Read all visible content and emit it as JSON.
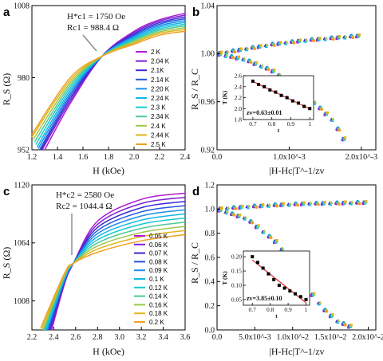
{
  "panels": {
    "a": {
      "label": "a",
      "xlabel": "H (kOe)",
      "ylabel": "R_S (Ω)",
      "annot_h": "H*c1 = 1750 Oe",
      "annot_r": "Rc1 = 988.4 Ω",
      "legend": [
        "2 K",
        "2.04 K",
        "2.1K",
        "2.14 K",
        "2.20 K",
        "2.24 K",
        "2.3 K",
        "2.34 K",
        "2.4 K",
        "2.44 K",
        "2.5 K"
      ],
      "xticks": [
        "1.2",
        "1.4",
        "1.6",
        "1.8",
        "2.0",
        "2.2",
        "2.4"
      ],
      "yticks": [
        "952",
        "980",
        "1008"
      ]
    },
    "b": {
      "label": "b",
      "xlabel": "|H-Hc|T^-1/zv",
      "ylabel": "R_S / R_C",
      "xticks": [
        "0.0",
        "1.0x10^-3",
        "2.0x10^-3"
      ],
      "yticks": [
        "0.92",
        "0.96",
        "1.00",
        "1.04"
      ],
      "inset": {
        "ylabel": "T (K)",
        "xlabel": "t",
        "xticks": [
          "0.7",
          "0.8",
          "0.9",
          "1"
        ],
        "yticks": [
          "1.8",
          "2.0",
          "2.2",
          "2.4",
          "2.6"
        ],
        "fit_text": "zv=0.63±0.01"
      }
    },
    "c": {
      "label": "c",
      "xlabel": "H (kOe)",
      "ylabel": "R_S (Ω)",
      "annot_h": "H*c2 = 2580 Oe",
      "annot_r": "Rc2 = 1044.4 Ω",
      "legend": [
        "0.05 K",
        "0.06 K",
        "0.07 K",
        "0.08 K",
        "0.09 K",
        "0.1 K",
        "0.12 K",
        "0.14 K",
        "0.16 K",
        "0.18 K",
        "0.2 K"
      ],
      "xticks": [
        "2.2",
        "2.4",
        "2.6",
        "2.8",
        "3.0",
        "3.2",
        "3.4",
        "3.6"
      ],
      "yticks": [
        "1008",
        "1064",
        "1120"
      ]
    },
    "d": {
      "label": "d",
      "xlabel": "|H-Hc|T^-1/zv",
      "ylabel": "R_S / R_C",
      "xticks": [
        "0.0",
        "5.0x10^-3",
        "1.0x10^-2",
        "1.5x10^-2",
        "2.0x10^-2"
      ],
      "yticks": [
        "0.0",
        "0.2",
        "0.4",
        "0.6",
        "0.8",
        "1.0",
        "1.2"
      ],
      "inset": {
        "ylabel": "T (K)",
        "xlabel": "t",
        "xticks": [
          "0.7",
          "0.8",
          "0.9",
          "1"
        ],
        "yticks": [
          "0.05",
          "0.10",
          "0.15",
          "0.20"
        ],
        "fit_text": "zv=3.85±0.10"
      }
    }
  },
  "colors": [
    "#b01ad6",
    "#7a22d6",
    "#3c2ad0",
    "#2456e0",
    "#1e8ee8",
    "#12b6e6",
    "#16cad0",
    "#4ec89a",
    "#9cc84a",
    "#e0b61e",
    "#f0a020"
  ],
  "chart_data": [
    {
      "type": "line",
      "title": "",
      "xlabel": "H (kOe)",
      "ylabel": "R_S (Ω)",
      "xlim": [
        1.2,
        2.4
      ],
      "ylim": [
        952,
        1008
      ],
      "crossing": {
        "x": 1.75,
        "y": 988.4
      },
      "series": [
        {
          "name": "2 K",
          "x": [
            1.3,
            1.5,
            1.75,
            2.0,
            2.2,
            2.4
          ],
          "y": [
            952,
            970,
            988.4,
            998,
            1002.5,
            1005
          ]
        },
        {
          "name": "2.04 K",
          "x": [
            1.28,
            1.5,
            1.75,
            2.0,
            2.2,
            2.4
          ],
          "y": [
            952,
            971,
            988.4,
            997.5,
            1002,
            1004.3
          ]
        },
        {
          "name": "2.1K",
          "x": [
            1.27,
            1.5,
            1.75,
            2.0,
            2.2,
            2.4
          ],
          "y": [
            952,
            972,
            988.4,
            997,
            1001.4,
            1003.6
          ]
        },
        {
          "name": "2.14 K",
          "x": [
            1.26,
            1.5,
            1.75,
            2.0,
            2.2,
            2.4
          ],
          "y": [
            952,
            973,
            988.4,
            996.5,
            1000.8,
            1002.9
          ]
        },
        {
          "name": "2.20 K",
          "x": [
            1.25,
            1.5,
            1.75,
            2.0,
            2.2,
            2.4
          ],
          "y": [
            952.5,
            974,
            988.4,
            996,
            1000.2,
            1002.2
          ]
        },
        {
          "name": "2.24 K",
          "x": [
            1.24,
            1.5,
            1.75,
            2.0,
            2.2,
            2.4
          ],
          "y": [
            953,
            975,
            988.4,
            995.5,
            999.6,
            1001.5
          ]
        },
        {
          "name": "2.3 K",
          "x": [
            1.23,
            1.5,
            1.75,
            2.0,
            2.2,
            2.4
          ],
          "y": [
            954,
            976,
            988.4,
            995,
            999,
            1000.8
          ]
        },
        {
          "name": "2.34 K",
          "x": [
            1.22,
            1.5,
            1.75,
            2.0,
            2.2,
            2.4
          ],
          "y": [
            955,
            977,
            988.4,
            994.5,
            998.4,
            1000.1
          ]
        },
        {
          "name": "2.4 K",
          "x": [
            1.21,
            1.5,
            1.75,
            2.0,
            2.2,
            2.4
          ],
          "y": [
            956,
            978,
            988.4,
            994,
            997.8,
            999.4
          ]
        },
        {
          "name": "2.44 K",
          "x": [
            1.2,
            1.5,
            1.75,
            2.0,
            2.2,
            2.4
          ],
          "y": [
            957,
            979,
            988.4,
            993.5,
            997.2,
            998.7
          ]
        },
        {
          "name": "2.5 K",
          "x": [
            1.2,
            1.5,
            1.75,
            2.0,
            2.2,
            2.4
          ],
          "y": [
            958,
            980,
            988.4,
            993,
            996.5,
            998
          ]
        }
      ]
    },
    {
      "type": "scatter",
      "xlabel": "|H-Hc|T^-1/zv",
      "ylabel": "R_S / R_C",
      "xlim": [
        0,
        0.0022
      ],
      "ylim": [
        0.92,
        1.04
      ],
      "upper_branch": {
        "x": [
          0,
          0.0004,
          0.0008,
          0.0012,
          0.0016,
          0.002
        ],
        "y": [
          1.0,
          1.004,
          1.008,
          1.011,
          1.013,
          1.015
        ]
      },
      "lower_branch": {
        "x": [
          0,
          0.0004,
          0.0008,
          0.0012,
          0.0016,
          0.0018
        ],
        "y": [
          1.0,
          0.995,
          0.985,
          0.968,
          0.945,
          0.925
        ]
      },
      "inset": {
        "xlabel": "t",
        "ylabel": "T (K)",
        "xlim": [
          0.65,
          1.02
        ],
        "ylim": [
          1.8,
          2.6
        ],
        "x": [
          0.7,
          0.73,
          0.76,
          0.79,
          0.82,
          0.85,
          0.88,
          0.91,
          0.94,
          0.97,
          1.0
        ],
        "y": [
          2.5,
          2.44,
          2.4,
          2.34,
          2.3,
          2.24,
          2.2,
          2.14,
          2.1,
          2.04,
          2.0
        ],
        "fit": "zv=0.63±0.01"
      }
    },
    {
      "type": "line",
      "xlabel": "H (kOe)",
      "ylabel": "R_S (Ω)",
      "xlim": [
        2.2,
        3.6
      ],
      "ylim": [
        980,
        1120
      ],
      "crossing": {
        "x": 2.58,
        "y": 1044.4
      },
      "series": [
        {
          "name": "0.05 K",
          "x": [
            2.38,
            2.5,
            2.58,
            2.8,
            3.2,
            3.6
          ],
          "y": [
            980,
            1025,
            1044.4,
            1085,
            1106,
            1112
          ]
        },
        {
          "name": "0.06 K",
          "x": [
            2.37,
            2.5,
            2.58,
            2.8,
            3.2,
            3.6
          ],
          "y": [
            980,
            1026,
            1044.4,
            1082,
            1102,
            1108
          ]
        },
        {
          "name": "0.07 K",
          "x": [
            2.36,
            2.5,
            2.58,
            2.8,
            3.2,
            3.6
          ],
          "y": [
            980,
            1027,
            1044.4,
            1079,
            1098,
            1104
          ]
        },
        {
          "name": "0.08 K",
          "x": [
            2.35,
            2.5,
            2.58,
            2.8,
            3.2,
            3.6
          ],
          "y": [
            980,
            1028,
            1044.4,
            1076,
            1094,
            1100
          ]
        },
        {
          "name": "0.09 K",
          "x": [
            2.34,
            2.5,
            2.58,
            2.8,
            3.2,
            3.6
          ],
          "y": [
            980,
            1029,
            1044.4,
            1073,
            1090,
            1096
          ]
        },
        {
          "name": "0.1 K",
          "x": [
            2.33,
            2.5,
            2.58,
            2.8,
            3.2,
            3.6
          ],
          "y": [
            980,
            1030,
            1044.4,
            1070,
            1086,
            1092
          ]
        },
        {
          "name": "0.12 K",
          "x": [
            2.32,
            2.5,
            2.58,
            2.8,
            3.2,
            3.6
          ],
          "y": [
            980,
            1031,
            1044.4,
            1067,
            1082,
            1088
          ]
        },
        {
          "name": "0.14 K",
          "x": [
            2.31,
            2.5,
            2.58,
            2.8,
            3.2,
            3.6
          ],
          "y": [
            980,
            1032,
            1044.4,
            1064,
            1078,
            1084
          ]
        },
        {
          "name": "0.16 K",
          "x": [
            2.3,
            2.5,
            2.58,
            2.8,
            3.2,
            3.6
          ],
          "y": [
            980,
            1033,
            1044.4,
            1061,
            1074,
            1080
          ]
        },
        {
          "name": "0.18 K",
          "x": [
            2.29,
            2.5,
            2.58,
            2.8,
            3.2,
            3.6
          ],
          "y": [
            981,
            1034,
            1044.4,
            1058,
            1070,
            1076
          ]
        },
        {
          "name": "0.2 K",
          "x": [
            2.28,
            2.5,
            2.58,
            2.8,
            3.2,
            3.6
          ],
          "y": [
            982,
            1035,
            1044.4,
            1055,
            1066,
            1072
          ]
        }
      ]
    },
    {
      "type": "scatter",
      "xlabel": "|H-Hc|T^-1/zv",
      "ylabel": "R_S / R_C",
      "xlim": [
        0,
        0.021
      ],
      "ylim": [
        0,
        1.2
      ],
      "upper_branch": {
        "x": [
          0,
          0.004,
          0.008,
          0.012,
          0.016,
          0.02
        ],
        "y": [
          1.0,
          1.02,
          1.035,
          1.045,
          1.05,
          1.055
        ]
      },
      "lower_branch": {
        "x": [
          0,
          0.004,
          0.008,
          0.01,
          0.012,
          0.014,
          0.016,
          0.018
        ],
        "y": [
          1.0,
          0.92,
          0.72,
          0.55,
          0.35,
          0.18,
          0.07,
          0.02
        ]
      },
      "inset": {
        "xlabel": "t",
        "ylabel": "T (K)",
        "xlim": [
          0.65,
          1.02
        ],
        "ylim": [
          0.03,
          0.22
        ],
        "x": [
          0.7,
          0.73,
          0.76,
          0.79,
          0.82,
          0.85,
          0.88,
          0.91,
          0.94,
          0.97,
          1.0
        ],
        "y": [
          0.2,
          0.18,
          0.16,
          0.14,
          0.12,
          0.1,
          0.09,
          0.08,
          0.07,
          0.06,
          0.05
        ],
        "fit": "zv=3.85±0.10"
      }
    }
  ]
}
